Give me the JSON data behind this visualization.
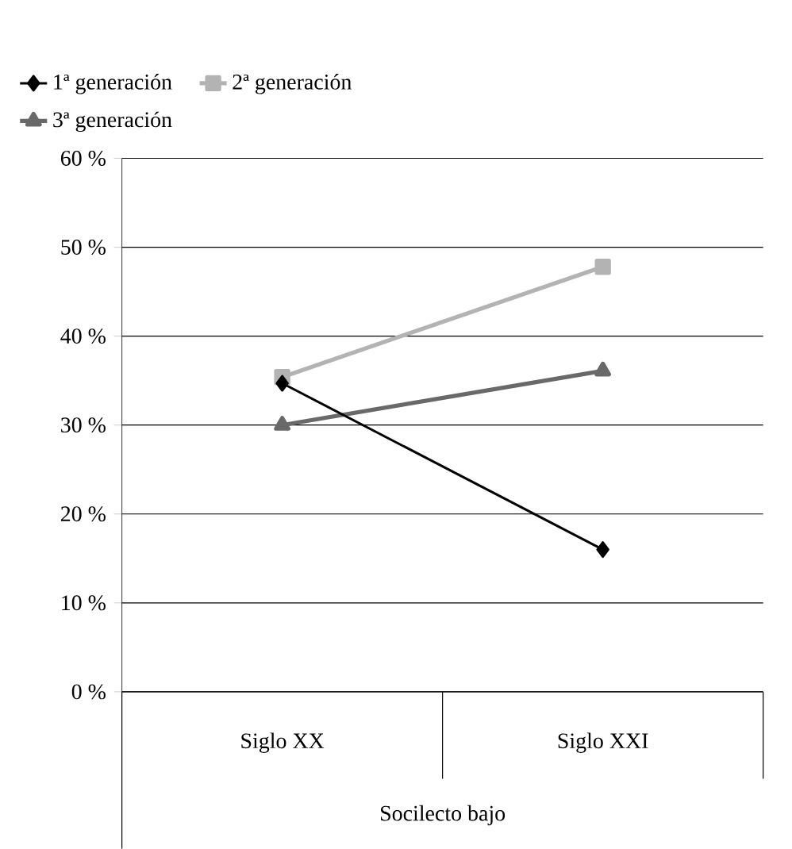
{
  "chart_data": {
    "type": "line",
    "xlabel": "Socilecto bajo",
    "categories": [
      "Siglo XX",
      "Siglo XXI"
    ],
    "series": [
      {
        "name": "1ª generación",
        "color": "#000000",
        "marker": "diamond",
        "values": [
          34.7,
          16
        ]
      },
      {
        "name": "2ª generación",
        "color": "#b3b3b3",
        "marker": "square",
        "values": [
          35.4,
          47.8
        ]
      },
      {
        "name": "3ª generación",
        "color": "#696969",
        "marker": "triangle",
        "values": [
          30,
          36.1
        ]
      }
    ],
    "ylim": [
      0,
      60
    ],
    "yticks": [
      {
        "value": 0,
        "label": "0 %"
      },
      {
        "value": 10,
        "label": "10 %"
      },
      {
        "value": 20,
        "label": "20 %"
      },
      {
        "value": 30,
        "label": "30 %"
      },
      {
        "value": 40,
        "label": "40 %"
      },
      {
        "value": 50,
        "label": "50 %"
      },
      {
        "value": 60,
        "label": "60 %"
      }
    ],
    "grid": "y",
    "legend": "top left"
  }
}
